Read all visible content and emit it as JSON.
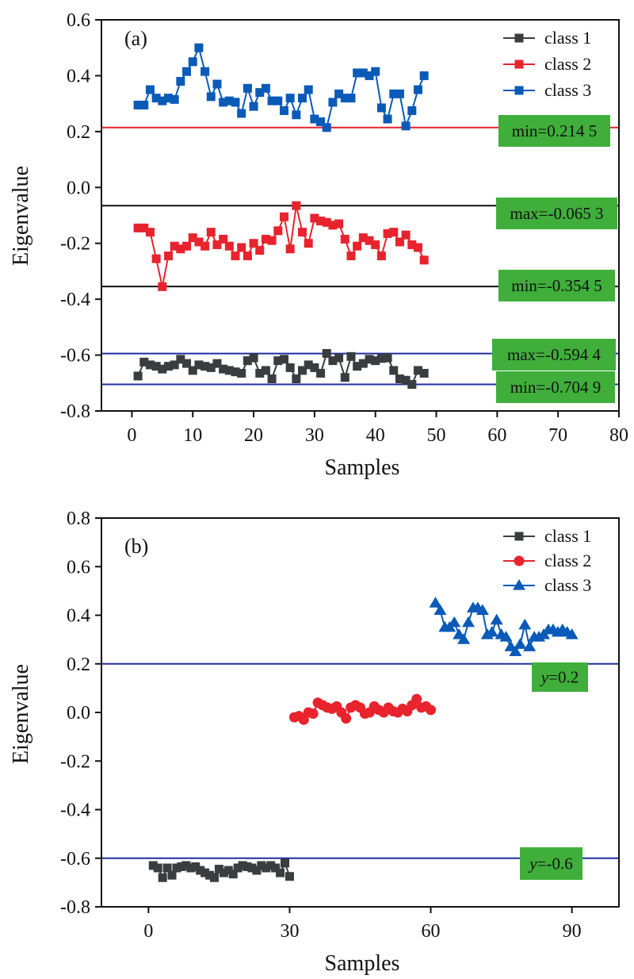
{
  "chart_data": [
    {
      "type": "line",
      "panel_label": "(a)",
      "xlabel": "Samples",
      "ylabel": "Eigenvalue",
      "xlim": [
        -5,
        80
      ],
      "ylim": [
        -0.8,
        0.6
      ],
      "xticks": [
        0,
        10,
        20,
        30,
        40,
        50,
        60,
        70,
        80
      ],
      "yticks": [
        -0.8,
        -0.6,
        -0.4,
        -0.2,
        0.0,
        0.2,
        0.4,
        0.6
      ],
      "xtick_labels": [
        "0",
        "10",
        "20",
        "30",
        "40",
        "50",
        "60",
        "70",
        "80"
      ],
      "ytick_labels": [
        "-0.8",
        "-0.6",
        "-0.4",
        "-0.2",
        "0.0",
        "0.2",
        "0.4",
        "0.6"
      ],
      "grid": false,
      "legend_position": "top-right",
      "series": [
        {
          "name": "class 1",
          "color": "#3a3d3f",
          "marker": "square",
          "x": [
            1,
            2,
            3,
            4,
            5,
            6,
            7,
            8,
            9,
            10,
            11,
            12,
            13,
            14,
            15,
            16,
            17,
            18,
            19,
            20,
            21,
            22,
            23,
            24,
            25,
            26,
            27,
            28,
            29,
            30,
            31,
            32,
            33,
            34,
            35,
            36,
            37,
            38,
            39,
            40,
            41,
            42,
            43,
            44,
            45,
            46,
            47,
            48
          ],
          "y": [
            -0.675,
            -0.625,
            -0.635,
            -0.64,
            -0.65,
            -0.64,
            -0.635,
            -0.615,
            -0.63,
            -0.655,
            -0.635,
            -0.64,
            -0.645,
            -0.63,
            -0.65,
            -0.655,
            -0.66,
            -0.665,
            -0.62,
            -0.61,
            -0.665,
            -0.655,
            -0.685,
            -0.62,
            -0.615,
            -0.645,
            -0.685,
            -0.655,
            -0.635,
            -0.645,
            -0.665,
            -0.594,
            -0.62,
            -0.61,
            -0.68,
            -0.605,
            -0.64,
            -0.63,
            -0.615,
            -0.62,
            -0.612,
            -0.61,
            -0.655,
            -0.685,
            -0.69,
            -0.705,
            -0.655,
            -0.665
          ]
        },
        {
          "name": "class 2",
          "color": "#e8232d",
          "marker": "square",
          "x": [
            1,
            2,
            3,
            4,
            5,
            6,
            7,
            8,
            9,
            10,
            11,
            12,
            13,
            14,
            15,
            16,
            17,
            18,
            19,
            20,
            21,
            22,
            23,
            24,
            25,
            26,
            27,
            28,
            29,
            30,
            31,
            32,
            33,
            34,
            35,
            36,
            37,
            38,
            39,
            40,
            41,
            42,
            43,
            44,
            45,
            46,
            47,
            48
          ],
          "y": [
            -0.145,
            -0.145,
            -0.16,
            -0.255,
            -0.355,
            -0.245,
            -0.21,
            -0.22,
            -0.21,
            -0.18,
            -0.195,
            -0.21,
            -0.16,
            -0.205,
            -0.185,
            -0.21,
            -0.245,
            -0.215,
            -0.245,
            -0.2,
            -0.225,
            -0.185,
            -0.19,
            -0.155,
            -0.105,
            -0.22,
            -0.065,
            -0.16,
            -0.2,
            -0.11,
            -0.12,
            -0.125,
            -0.135,
            -0.13,
            -0.185,
            -0.245,
            -0.21,
            -0.18,
            -0.19,
            -0.205,
            -0.245,
            -0.165,
            -0.16,
            -0.195,
            -0.17,
            -0.205,
            -0.215,
            -0.26
          ]
        },
        {
          "name": "class 3",
          "color": "#0a5ab8",
          "marker": "square",
          "x": [
            1,
            2,
            3,
            4,
            5,
            6,
            7,
            8,
            9,
            10,
            11,
            12,
            13,
            14,
            15,
            16,
            17,
            18,
            19,
            20,
            21,
            22,
            23,
            24,
            25,
            26,
            27,
            28,
            29,
            30,
            31,
            32,
            33,
            34,
            35,
            36,
            37,
            38,
            39,
            40,
            41,
            42,
            43,
            44,
            45,
            46,
            47,
            48
          ],
          "y": [
            0.295,
            0.295,
            0.35,
            0.32,
            0.31,
            0.32,
            0.315,
            0.38,
            0.415,
            0.45,
            0.5,
            0.415,
            0.325,
            0.37,
            0.305,
            0.31,
            0.305,
            0.265,
            0.355,
            0.29,
            0.34,
            0.355,
            0.31,
            0.31,
            0.275,
            0.32,
            0.26,
            0.32,
            0.35,
            0.245,
            0.235,
            0.2145,
            0.305,
            0.335,
            0.32,
            0.32,
            0.41,
            0.41,
            0.4,
            0.415,
            0.285,
            0.245,
            0.335,
            0.335,
            0.22,
            0.275,
            0.35,
            0.4
          ]
        }
      ],
      "reference_lines": [
        {
          "y": 0.2145,
          "color": "#e8232d",
          "label": "min=0.214 5"
        },
        {
          "y": -0.0653,
          "color": "#111111",
          "label": "max=-0.065 3"
        },
        {
          "y": -0.3545,
          "color": "#111111",
          "label": "min=-0.354 5"
        },
        {
          "y": -0.5944,
          "color": "#1f2fa0",
          "label": "max=-0.594 4"
        },
        {
          "y": -0.7049,
          "color": "#1f2fa0",
          "label": "min=-0.704 9"
        }
      ],
      "annotation_box_color": "#3fae3a"
    },
    {
      "type": "line",
      "panel_label": "(b)",
      "xlabel": "Samples",
      "ylabel": "Eigenvalue",
      "xlim": [
        -10,
        100
      ],
      "ylim": [
        -0.8,
        0.8
      ],
      "xticks": [
        0,
        30,
        60,
        90
      ],
      "yticks": [
        -0.8,
        -0.6,
        -0.4,
        -0.2,
        0.0,
        0.2,
        0.4,
        0.6,
        0.8
      ],
      "xtick_labels": [
        "0",
        "30",
        "60",
        "90"
      ],
      "ytick_labels": [
        "-0.8",
        "-0.6",
        "-0.4",
        "-0.2",
        "0.0",
        "0.2",
        "0.4",
        "0.6",
        "0.8"
      ],
      "grid": false,
      "legend_position": "top-right",
      "series": [
        {
          "name": "class 1",
          "color": "#3a3d3f",
          "marker": "square",
          "x": [
            1,
            2,
            3,
            4,
            5,
            6,
            7,
            8,
            9,
            10,
            11,
            12,
            13,
            14,
            15,
            16,
            17,
            18,
            19,
            20,
            21,
            22,
            23,
            24,
            25,
            26,
            27,
            28,
            29,
            30
          ],
          "y": [
            -0.63,
            -0.64,
            -0.68,
            -0.64,
            -0.67,
            -0.64,
            -0.635,
            -0.63,
            -0.64,
            -0.635,
            -0.65,
            -0.66,
            -0.67,
            -0.68,
            -0.645,
            -0.66,
            -0.65,
            -0.665,
            -0.64,
            -0.63,
            -0.635,
            -0.64,
            -0.65,
            -0.63,
            -0.64,
            -0.63,
            -0.64,
            -0.66,
            -0.62,
            -0.675
          ]
        },
        {
          "name": "class 2",
          "color": "#e8232d",
          "marker": "circle",
          "x": [
            31,
            32,
            33,
            34,
            35,
            36,
            37,
            38,
            39,
            40,
            41,
            42,
            43,
            44,
            45,
            46,
            47,
            48,
            49,
            50,
            51,
            52,
            53,
            54,
            55,
            56,
            57,
            58,
            59,
            60
          ],
          "y": [
            -0.02,
            -0.015,
            -0.03,
            0.0,
            -0.005,
            0.04,
            0.03,
            0.02,
            0.015,
            0.025,
            0.0,
            -0.025,
            0.02,
            0.03,
            0.02,
            -0.005,
            0.0,
            0.025,
            0.01,
            0.0,
            0.02,
            0.005,
            0.0,
            0.015,
            0.005,
            0.03,
            0.055,
            0.02,
            0.025,
            0.01
          ]
        },
        {
          "name": "class 3",
          "color": "#0a5ab8",
          "marker": "triangle",
          "x": [
            61,
            62,
            63,
            64,
            65,
            66,
            67,
            68,
            69,
            70,
            71,
            72,
            73,
            74,
            75,
            76,
            77,
            78,
            79,
            80,
            81,
            82,
            83,
            84,
            85,
            86,
            87,
            88,
            89,
            90
          ],
          "y": [
            0.45,
            0.42,
            0.35,
            0.35,
            0.37,
            0.32,
            0.3,
            0.37,
            0.43,
            0.43,
            0.42,
            0.32,
            0.33,
            0.38,
            0.32,
            0.31,
            0.27,
            0.25,
            0.28,
            0.36,
            0.27,
            0.31,
            0.31,
            0.32,
            0.34,
            0.34,
            0.33,
            0.34,
            0.33,
            0.32
          ]
        }
      ],
      "reference_lines": [
        {
          "y": 0.2,
          "color": "#1f2fa0",
          "label_var": "y",
          "label_rest": "=0.2"
        },
        {
          "y": -0.6,
          "color": "#1f2fa0",
          "label_var": "y",
          "label_rest": "=-0.6"
        }
      ],
      "annotation_box_color": "#3fae3a"
    }
  ]
}
